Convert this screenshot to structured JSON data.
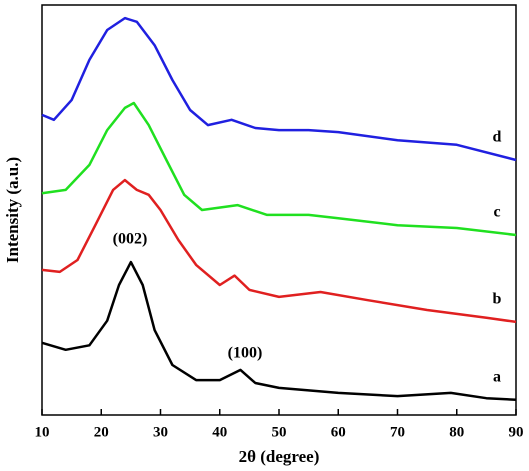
{
  "chart_data": {
    "type": "line",
    "x_label": "2θ (degree)",
    "y_label": "Intensity (a.u.)",
    "xlim": [
      10,
      90
    ],
    "xticks": [
      10,
      20,
      30,
      40,
      50,
      60,
      70,
      80,
      90
    ],
    "ylim": [
      0,
      100
    ],
    "annotations": [
      "(002)",
      "(100)"
    ],
    "series": [
      {
        "name": "a",
        "color": "#000000",
        "x": [
          10,
          14,
          18,
          21,
          23,
          25,
          27,
          29,
          32,
          36,
          40,
          43.5,
          46,
          50,
          60,
          70,
          79,
          85,
          90
        ],
        "values": [
          17.6,
          15.9,
          17,
          23,
          31.7,
          37.3,
          31.7,
          20.7,
          12.2,
          8.5,
          8.5,
          11,
          7.8,
          6.6,
          5.4,
          4.6,
          5.4,
          4.1,
          3.7
        ]
      },
      {
        "name": "b",
        "color": "#e02020",
        "x": [
          10,
          13,
          16,
          19,
          22,
          24,
          26,
          28,
          30,
          33,
          36,
          40,
          42.5,
          45,
          50,
          57,
          65,
          75,
          85,
          90
        ],
        "values": [
          35.4,
          34.9,
          37.8,
          46.3,
          54.9,
          57.3,
          54.9,
          53.7,
          50,
          42.7,
          36.6,
          31.7,
          34,
          30.5,
          28.8,
          30,
          28,
          25.6,
          23.7,
          22.7
        ]
      },
      {
        "name": "c",
        "color": "#20e020",
        "x": [
          10,
          14,
          18,
          21,
          24,
          25.5,
          28,
          31,
          34,
          37,
          43,
          48,
          55,
          60,
          70,
          80,
          90
        ],
        "values": [
          54.1,
          54.9,
          61,
          69.5,
          74.9,
          76.1,
          70.7,
          62.2,
          53.7,
          50,
          51.2,
          48.8,
          48.8,
          48,
          46.3,
          45.6,
          43.9
        ]
      },
      {
        "name": "d",
        "color": "#2020e0",
        "x": [
          10,
          12,
          15,
          18,
          21,
          24,
          26,
          29,
          32,
          35,
          38,
          42,
          46,
          50,
          55,
          60,
          70,
          80,
          90
        ],
        "values": [
          73.2,
          72,
          76.8,
          86.6,
          93.9,
          96.8,
          95.9,
          90.2,
          81.7,
          74.4,
          70.7,
          72,
          70,
          69.5,
          69.5,
          69,
          67,
          65.9,
          62.2
        ]
      }
    ]
  }
}
